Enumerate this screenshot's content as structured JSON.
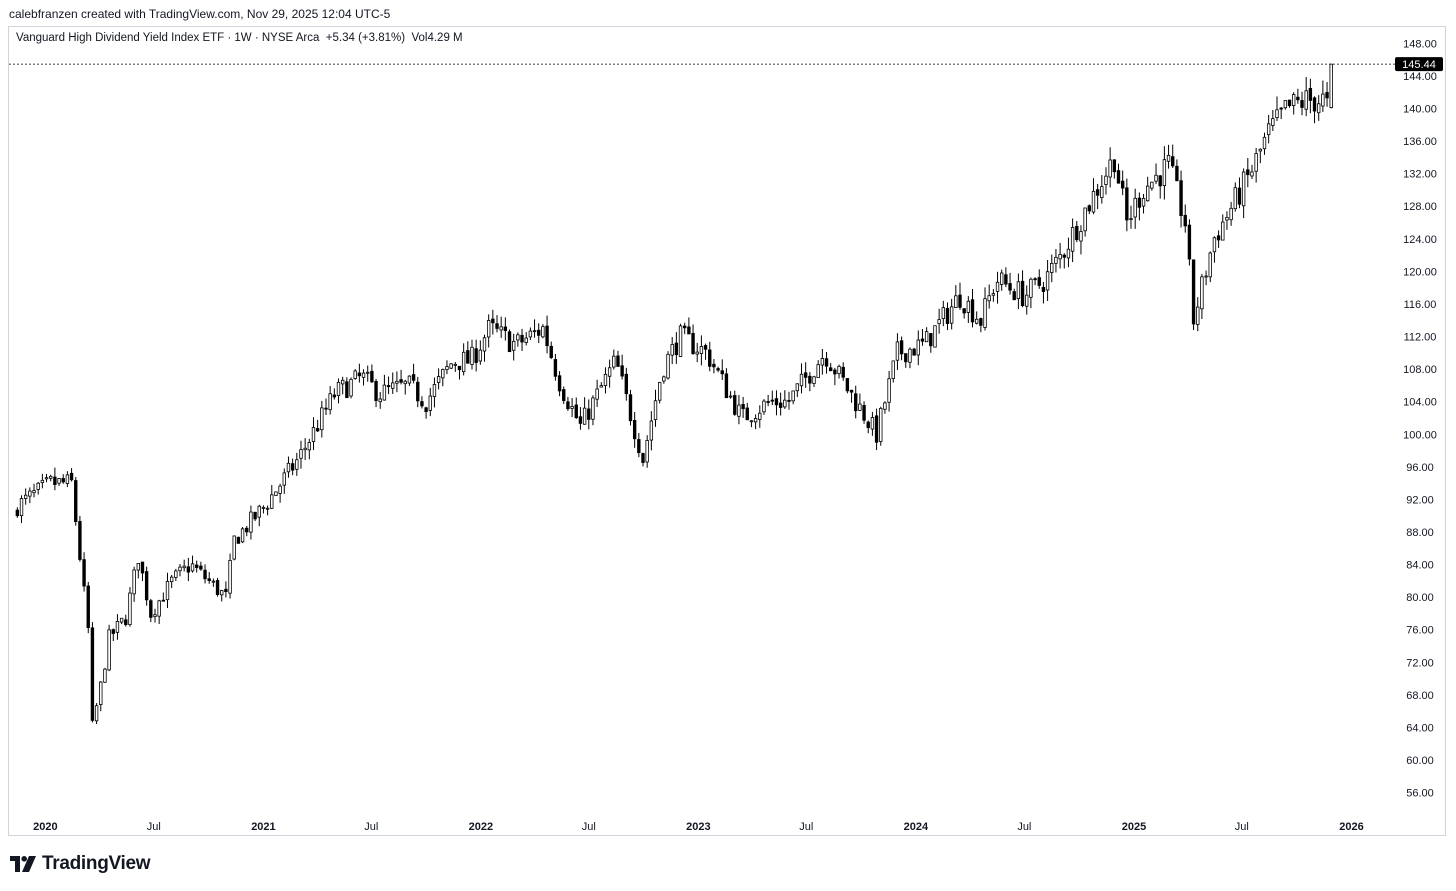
{
  "header": {
    "credit": "calebfranzen created with TradingView.com, Nov 29, 2025 12:04 UTC-5"
  },
  "legend": {
    "symbol": "Vanguard High Dividend Yield Index ETF · 1W · NYSE Arca",
    "change": "+5.34 (+3.81%)",
    "volume": "Vol4.29 M"
  },
  "brand": {
    "name": "TradingView",
    "logo_icon": "tradingview-logo-icon"
  },
  "colors": {
    "candle": "#000000",
    "up_fill": "#ffffff",
    "down_fill": "#000000",
    "price_label_bg": "#000000",
    "price_label_text": "#ffffff",
    "frame": "#d1d4dc"
  },
  "chart_data": {
    "type": "candlestick",
    "interval": "1W",
    "title": "Vanguard High Dividend Yield Index ETF · 1W · NYSE Arca",
    "last_price": 145.44,
    "last_price_label": "145.44",
    "ylim": [
      53.5,
      150
    ],
    "y_ticks": [
      "56.00",
      "60.00",
      "64.00",
      "68.00",
      "72.00",
      "76.00",
      "80.00",
      "84.00",
      "88.00",
      "92.00",
      "96.00",
      "100.00",
      "104.00",
      "108.00",
      "112.00",
      "116.00",
      "120.00",
      "124.00",
      "128.00",
      "132.00",
      "136.00",
      "140.00",
      "144.00",
      "148.00"
    ],
    "x_ticks": [
      {
        "label": "2020",
        "date": "2020-01-01",
        "bold": true
      },
      {
        "label": "Jul",
        "date": "2020-07-01",
        "bold": false
      },
      {
        "label": "2021",
        "date": "2021-01-01",
        "bold": true
      },
      {
        "label": "Jul",
        "date": "2021-07-01",
        "bold": false
      },
      {
        "label": "2022",
        "date": "2022-01-01",
        "bold": true
      },
      {
        "label": "Jul",
        "date": "2022-07-01",
        "bold": false
      },
      {
        "label": "2023",
        "date": "2023-01-01",
        "bold": true
      },
      {
        "label": "Jul",
        "date": "2023-07-01",
        "bold": false
      },
      {
        "label": "2024",
        "date": "2024-01-01",
        "bold": true
      },
      {
        "label": "Jul",
        "date": "2024-07-01",
        "bold": false
      },
      {
        "label": "2025",
        "date": "2025-01-01",
        "bold": true
      },
      {
        "label": "Jul",
        "date": "2025-07-01",
        "bold": false
      },
      {
        "label": "2026",
        "date": "2026-01-01",
        "bold": true
      }
    ],
    "x_range": [
      "2019-11-01",
      "2026-03-10"
    ],
    "close_path": [
      [
        "2019-11-01",
        90.5
      ],
      [
        "2019-12-01",
        92.0
      ],
      [
        "2020-01-10",
        94.0
      ],
      [
        "2020-02-14",
        94.0
      ],
      [
        "2020-02-28",
        85.0
      ],
      [
        "2020-03-13",
        76.0
      ],
      [
        "2020-03-20",
        64.0
      ],
      [
        "2020-04-03",
        69.0
      ],
      [
        "2020-04-17",
        75.0
      ],
      [
        "2020-05-15",
        77.5
      ],
      [
        "2020-06-05",
        85.0
      ],
      [
        "2020-06-26",
        78.0
      ],
      [
        "2020-08-01",
        82.0
      ],
      [
        "2020-09-01",
        84.0
      ],
      [
        "2020-10-30",
        80.0
      ],
      [
        "2020-11-13",
        87.0
      ],
      [
        "2021-01-01",
        91.0
      ],
      [
        "2021-03-01",
        97.0
      ],
      [
        "2021-05-01",
        105.0
      ],
      [
        "2021-06-15",
        107.0
      ],
      [
        "2021-07-15",
        105.0
      ],
      [
        "2021-09-01",
        106.0
      ],
      [
        "2021-10-01",
        104.0
      ],
      [
        "2021-11-15",
        109.0
      ],
      [
        "2021-12-15",
        109.0
      ],
      [
        "2022-01-15",
        113.0
      ],
      [
        "2022-03-01",
        111.0
      ],
      [
        "2022-04-15",
        113.0
      ],
      [
        "2022-05-15",
        106.0
      ],
      [
        "2022-06-17",
        101.0
      ],
      [
        "2022-08-15",
        109.0
      ],
      [
        "2022-09-30",
        97.0
      ],
      [
        "2022-11-01",
        108.0
      ],
      [
        "2022-12-01",
        112.0
      ],
      [
        "2023-01-15",
        110.0
      ],
      [
        "2023-03-15",
        102.0
      ],
      [
        "2023-05-01",
        104.0
      ],
      [
        "2023-06-01",
        104.0
      ],
      [
        "2023-08-01",
        110.0
      ],
      [
        "2023-10-27",
        100.0
      ],
      [
        "2023-12-01",
        110.0
      ],
      [
        "2024-01-15",
        111.0
      ],
      [
        "2024-03-15",
        117.0
      ],
      [
        "2024-04-19",
        114.0
      ],
      [
        "2024-05-15",
        119.0
      ],
      [
        "2024-07-01",
        117.0
      ],
      [
        "2024-08-05",
        119.0
      ],
      [
        "2024-09-01",
        122.0
      ],
      [
        "2024-10-15",
        128.0
      ],
      [
        "2024-11-29",
        134.0
      ],
      [
        "2024-12-20",
        126.0
      ],
      [
        "2025-01-15",
        130.0
      ],
      [
        "2025-02-28",
        133.0
      ],
      [
        "2025-03-28",
        126.0
      ],
      [
        "2025-04-11",
        114.0
      ],
      [
        "2025-05-15",
        124.0
      ],
      [
        "2025-06-15",
        128.0
      ],
      [
        "2025-07-15",
        132.0
      ],
      [
        "2025-08-15",
        137.0
      ],
      [
        "2025-09-15",
        140.0
      ],
      [
        "2025-10-17",
        141.0
      ],
      [
        "2025-11-14",
        141.0
      ],
      [
        "2025-11-21",
        140.2
      ]
    ],
    "last_candle": {
      "date": "2025-11-28",
      "open": 140.1,
      "high": 145.44,
      "low": 140.0,
      "close": 145.44
    }
  }
}
